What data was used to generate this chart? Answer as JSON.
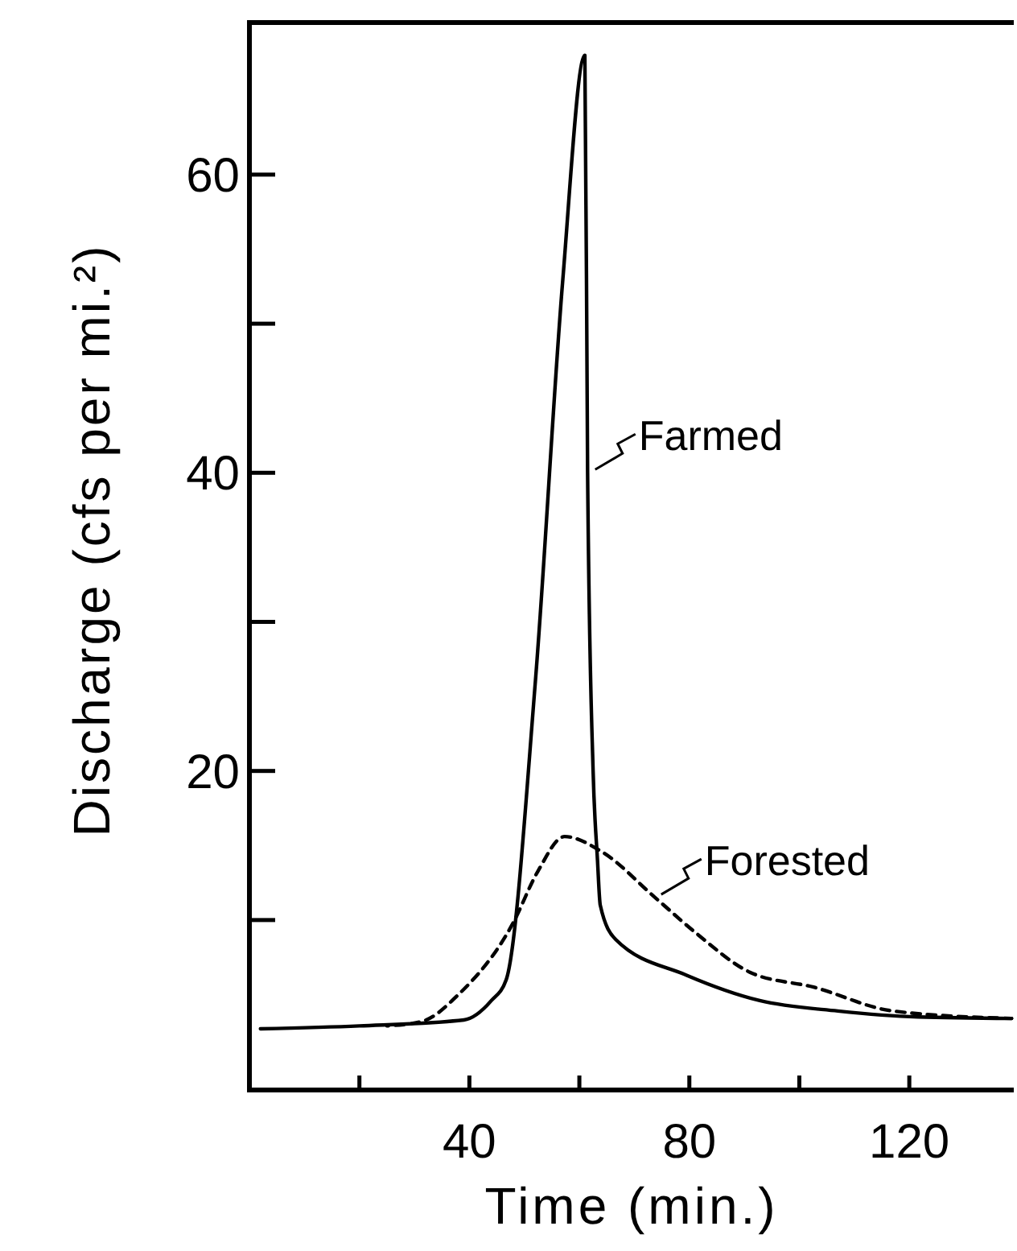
{
  "chart_data": {
    "type": "line",
    "xlabel": "Time (min.)",
    "ylabel": "Discharge (cfs per mi.²)",
    "xlim": [
      0,
      139
    ],
    "ylim": [
      -1.4,
      70.2
    ],
    "xticks": [
      {
        "value": 20,
        "label": null
      },
      40,
      {
        "value": 60,
        "label": null
      },
      80,
      {
        "value": 100,
        "label": null
      },
      120
    ],
    "yticks": [
      {
        "value": 10,
        "label": null
      },
      20,
      {
        "value": 30,
        "label": null
      },
      40,
      {
        "value": 50,
        "label": null
      },
      60
    ],
    "grid": false,
    "marker": "none",
    "series": [
      {
        "color": "#000000",
        "line_style": "solid",
        "x": [
          2,
          20,
          39,
          44,
          46.7,
          52,
          57,
          61,
          61.5,
          62.5,
          63.3,
          63.8,
          66.6,
          79.5,
          92.8,
          107,
          121.6,
          138.6
        ],
        "values": [
          2.7,
          2.9,
          3.3,
          4.6,
          6,
          26,
          53,
          68,
          40,
          20,
          14,
          11,
          8.7,
          6.3,
          4.6,
          3.9,
          3.5,
          3.4
        ]
      },
      {
        "color": "#000000",
        "line_style": "dashed",
        "x": [
          25,
          31.4,
          38,
          47.8,
          52.5,
          57.3,
          64,
          73.8,
          81.3,
          91,
          102.6,
          117,
          138.6
        ],
        "values": [
          2.9,
          3.2,
          5,
          9.7,
          13.3,
          15.6,
          14.6,
          11.5,
          9.1,
          6.5,
          5.5,
          3.9,
          3.4
        ]
      }
    ],
    "annotations": [
      {
        "text": "Farmed",
        "x": 62,
        "y": 40
      },
      {
        "text": "Forested",
        "x": 74,
        "y": 11.5
      }
    ]
  }
}
